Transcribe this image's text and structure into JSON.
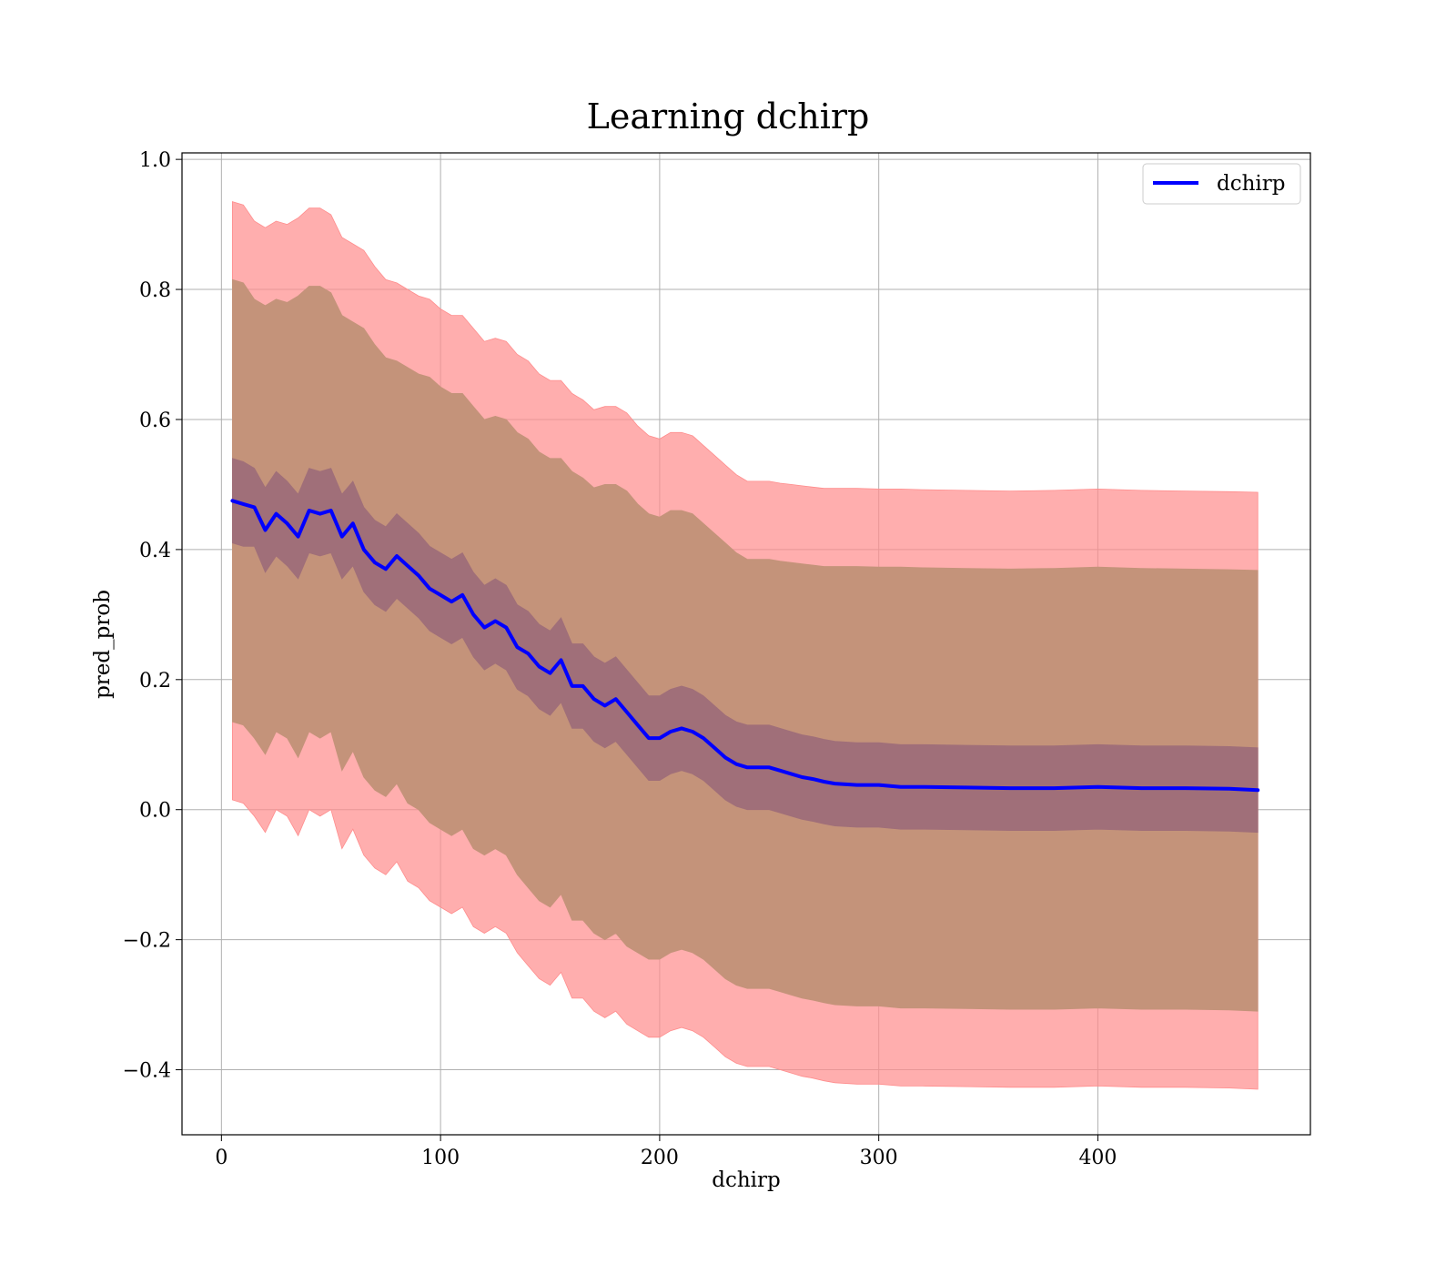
{
  "chart_data": {
    "type": "line",
    "title": "Learning dchirp",
    "xlabel": "dchirp",
    "ylabel": "pred_prob",
    "xlim": [
      -18,
      497
    ],
    "ylim": [
      -0.5,
      1.01
    ],
    "xticks": [
      0,
      100,
      200,
      300,
      400
    ],
    "yticks": [
      -0.4,
      -0.2,
      0.0,
      0.2,
      0.4,
      0.6,
      0.8,
      1.0
    ],
    "xtick_labels": [
      "0",
      "100",
      "200",
      "300",
      "400"
    ],
    "ytick_labels": [
      "−0.4",
      "−0.2",
      "0.0",
      "0.2",
      "0.4",
      "0.6",
      "0.8",
      "1.0"
    ],
    "grid": true,
    "legend": {
      "position": "top-right",
      "entries": [
        "dchirp"
      ]
    },
    "colors": {
      "line": "#0000ff",
      "band_outer": "#ff8c8c",
      "band_middle": "#c4937a",
      "band_inner": "#a06f79",
      "grid": "#b0b0b0"
    },
    "x": [
      5,
      10,
      15,
      20,
      25,
      30,
      35,
      40,
      45,
      50,
      55,
      60,
      65,
      70,
      75,
      80,
      85,
      90,
      95,
      100,
      105,
      110,
      115,
      120,
      125,
      130,
      135,
      140,
      145,
      150,
      155,
      160,
      165,
      170,
      175,
      180,
      185,
      190,
      195,
      200,
      205,
      210,
      215,
      220,
      225,
      230,
      235,
      240,
      245,
      250,
      255,
      260,
      265,
      270,
      275,
      280,
      290,
      300,
      310,
      320,
      340,
      360,
      380,
      400,
      420,
      440,
      460,
      473
    ],
    "series": [
      {
        "name": "dchirp",
        "values": [
          0.475,
          0.47,
          0.465,
          0.43,
          0.455,
          0.44,
          0.42,
          0.46,
          0.455,
          0.46,
          0.42,
          0.44,
          0.4,
          0.38,
          0.37,
          0.39,
          0.375,
          0.36,
          0.34,
          0.33,
          0.32,
          0.33,
          0.3,
          0.28,
          0.29,
          0.28,
          0.25,
          0.24,
          0.22,
          0.21,
          0.23,
          0.19,
          0.19,
          0.17,
          0.16,
          0.17,
          0.15,
          0.13,
          0.11,
          0.11,
          0.12,
          0.125,
          0.12,
          0.11,
          0.095,
          0.08,
          0.07,
          0.065,
          0.065,
          0.065,
          0.06,
          0.055,
          0.05,
          0.047,
          0.043,
          0.04,
          0.038,
          0.038,
          0.035,
          0.035,
          0.034,
          0.033,
          0.033,
          0.035,
          0.033,
          0.033,
          0.032,
          0.03
        ]
      }
    ],
    "bands": [
      {
        "layer": "outer",
        "upper": [
          0.935,
          0.93,
          0.905,
          0.895,
          0.905,
          0.9,
          0.91,
          0.925,
          0.925,
          0.915,
          0.88,
          0.87,
          0.86,
          0.835,
          0.815,
          0.81,
          0.8,
          0.79,
          0.785,
          0.77,
          0.76,
          0.76,
          0.74,
          0.72,
          0.725,
          0.72,
          0.7,
          0.69,
          0.67,
          0.66,
          0.66,
          0.64,
          0.63,
          0.615,
          0.62,
          0.62,
          0.61,
          0.59,
          0.575,
          0.57,
          0.58,
          0.58,
          0.575,
          0.56,
          0.545,
          0.53,
          0.515,
          0.505,
          0.505,
          0.505,
          0.502,
          0.5,
          0.498,
          0.496,
          0.494,
          0.494,
          0.494,
          0.493,
          0.493,
          0.492,
          0.491,
          0.49,
          0.491,
          0.493,
          0.491,
          0.49,
          0.489,
          0.488
        ],
        "lower": [
          0.015,
          0.01,
          -0.01,
          -0.035,
          0.0,
          -0.01,
          -0.04,
          0.0,
          -0.01,
          0.0,
          -0.06,
          -0.03,
          -0.07,
          -0.09,
          -0.1,
          -0.08,
          -0.11,
          -0.12,
          -0.14,
          -0.15,
          -0.16,
          -0.15,
          -0.18,
          -0.19,
          -0.18,
          -0.19,
          -0.22,
          -0.24,
          -0.26,
          -0.27,
          -0.25,
          -0.29,
          -0.29,
          -0.31,
          -0.32,
          -0.31,
          -0.33,
          -0.34,
          -0.35,
          -0.35,
          -0.34,
          -0.335,
          -0.34,
          -0.35,
          -0.365,
          -0.38,
          -0.39,
          -0.395,
          -0.395,
          -0.395,
          -0.4,
          -0.405,
          -0.41,
          -0.413,
          -0.417,
          -0.42,
          -0.422,
          -0.422,
          -0.425,
          -0.425,
          -0.426,
          -0.427,
          -0.427,
          -0.425,
          -0.427,
          -0.427,
          -0.428,
          -0.43
        ]
      },
      {
        "layer": "middle",
        "upper": [
          0.815,
          0.81,
          0.785,
          0.775,
          0.785,
          0.78,
          0.79,
          0.805,
          0.805,
          0.795,
          0.76,
          0.75,
          0.74,
          0.715,
          0.695,
          0.69,
          0.68,
          0.67,
          0.665,
          0.65,
          0.64,
          0.64,
          0.62,
          0.6,
          0.605,
          0.6,
          0.58,
          0.57,
          0.55,
          0.54,
          0.54,
          0.52,
          0.51,
          0.495,
          0.5,
          0.5,
          0.49,
          0.47,
          0.455,
          0.45,
          0.46,
          0.46,
          0.455,
          0.44,
          0.425,
          0.41,
          0.395,
          0.385,
          0.385,
          0.385,
          0.382,
          0.38,
          0.378,
          0.376,
          0.374,
          0.374,
          0.374,
          0.373,
          0.373,
          0.372,
          0.371,
          0.37,
          0.371,
          0.373,
          0.371,
          0.37,
          0.369,
          0.368
        ],
        "lower": [
          0.135,
          0.13,
          0.11,
          0.085,
          0.12,
          0.11,
          0.08,
          0.12,
          0.11,
          0.12,
          0.06,
          0.09,
          0.05,
          0.03,
          0.02,
          0.04,
          0.01,
          0.0,
          -0.02,
          -0.03,
          -0.04,
          -0.03,
          -0.06,
          -0.07,
          -0.06,
          -0.07,
          -0.1,
          -0.12,
          -0.14,
          -0.15,
          -0.13,
          -0.17,
          -0.17,
          -0.19,
          -0.2,
          -0.19,
          -0.21,
          -0.22,
          -0.23,
          -0.23,
          -0.22,
          -0.215,
          -0.22,
          -0.23,
          -0.245,
          -0.26,
          -0.27,
          -0.275,
          -0.275,
          -0.275,
          -0.28,
          -0.285,
          -0.29,
          -0.293,
          -0.297,
          -0.3,
          -0.302,
          -0.302,
          -0.305,
          -0.305,
          -0.306,
          -0.307,
          -0.307,
          -0.305,
          -0.307,
          -0.307,
          -0.308,
          -0.31
        ]
      },
      {
        "layer": "inner",
        "upper": [
          0.54,
          0.535,
          0.525,
          0.495,
          0.52,
          0.505,
          0.485,
          0.525,
          0.52,
          0.525,
          0.485,
          0.505,
          0.465,
          0.445,
          0.435,
          0.455,
          0.44,
          0.425,
          0.405,
          0.395,
          0.385,
          0.395,
          0.365,
          0.345,
          0.355,
          0.345,
          0.315,
          0.305,
          0.285,
          0.275,
          0.295,
          0.255,
          0.255,
          0.235,
          0.225,
          0.235,
          0.215,
          0.195,
          0.175,
          0.175,
          0.185,
          0.19,
          0.185,
          0.175,
          0.16,
          0.145,
          0.135,
          0.13,
          0.13,
          0.13,
          0.125,
          0.12,
          0.115,
          0.112,
          0.108,
          0.105,
          0.103,
          0.103,
          0.1,
          0.1,
          0.099,
          0.098,
          0.098,
          0.1,
          0.098,
          0.098,
          0.097,
          0.095
        ],
        "lower": [
          0.41,
          0.405,
          0.405,
          0.365,
          0.39,
          0.375,
          0.355,
          0.395,
          0.39,
          0.395,
          0.355,
          0.375,
          0.335,
          0.315,
          0.305,
          0.325,
          0.31,
          0.295,
          0.275,
          0.265,
          0.255,
          0.265,
          0.235,
          0.215,
          0.225,
          0.215,
          0.185,
          0.175,
          0.155,
          0.145,
          0.165,
          0.125,
          0.125,
          0.105,
          0.095,
          0.105,
          0.085,
          0.065,
          0.045,
          0.045,
          0.055,
          0.06,
          0.055,
          0.045,
          0.03,
          0.015,
          0.005,
          0.0,
          0.0,
          0.0,
          -0.005,
          -0.01,
          -0.015,
          -0.018,
          -0.022,
          -0.025,
          -0.027,
          -0.027,
          -0.03,
          -0.03,
          -0.031,
          -0.032,
          -0.032,
          -0.03,
          -0.032,
          -0.032,
          -0.033,
          -0.035
        ]
      }
    ]
  }
}
